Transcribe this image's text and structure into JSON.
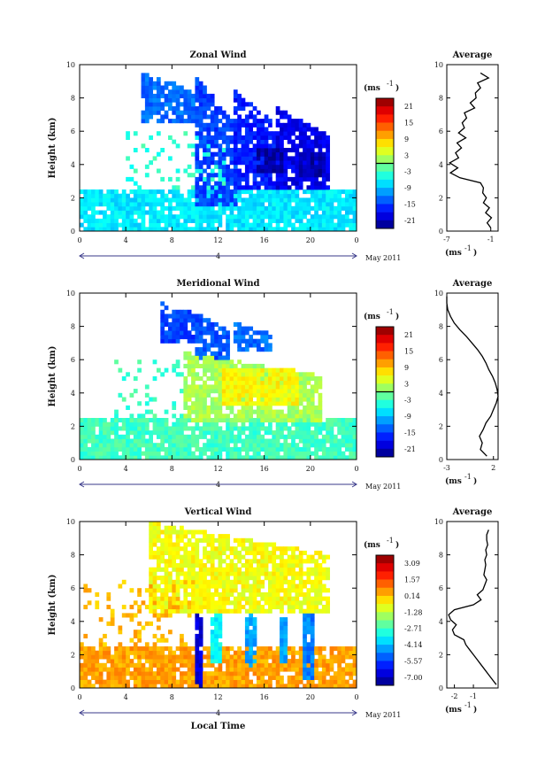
{
  "chart_data": [
    {
      "type": "heatmap",
      "title": "Zonal Wind",
      "ylabel": "Height (km)",
      "xlabel": "",
      "ylim": [
        0,
        10
      ],
      "xlim": [
        0,
        24
      ],
      "x_ticks": [
        "0",
        "4",
        "8",
        "12",
        "16",
        "20",
        "0"
      ],
      "y_ticks": [
        "0",
        "2",
        "4",
        "6",
        "8",
        "10"
      ],
      "date_marker": "4",
      "date_label": "May 2011",
      "colorbar": {
        "unit_text": "(ms",
        "unit_exp": "-1",
        "unit_close": ")",
        "range": [
          -24,
          24
        ],
        "ticks": [
          "21",
          "15",
          "9",
          "3",
          "-3",
          "-9",
          "-15",
          "-21"
        ]
      },
      "profile": {
        "title": "Average",
        "unit_text": "(ms",
        "unit_exp": "-1",
        "unit_close": ")",
        "xlim": [
          -7,
          0
        ],
        "x_ticks": [
          "-7",
          "-1"
        ],
        "y_ticks": [
          "0",
          "2",
          "4",
          "6",
          "8",
          "10"
        ],
        "height": [
          0.2,
          0.5,
          0.8,
          1.1,
          1.4,
          1.7,
          2.0,
          2.3,
          2.6,
          2.9,
          3.2,
          3.5,
          3.8,
          4.1,
          4.4,
          4.7,
          5.0,
          5.3,
          5.6,
          5.9,
          6.2,
          6.5,
          6.8,
          7.1,
          7.4,
          7.7,
          8.0,
          8.3,
          8.6,
          8.9,
          9.2,
          9.5
        ],
        "values": [
          -1.0,
          -1.5,
          -0.9,
          -1.7,
          -1.2,
          -2.0,
          -1.6,
          -2.1,
          -2.0,
          -2.4,
          -5.2,
          -6.5,
          -5.5,
          -6.6,
          -5.4,
          -5.8,
          -5.0,
          -5.6,
          -4.4,
          -5.4,
          -4.6,
          -4.9,
          -4.3,
          -4.6,
          -3.2,
          -3.8,
          -3.0,
          -3.1,
          -2.4,
          -2.8,
          -1.3,
          -2.4
        ]
      },
      "features": [
        {
          "kind": "band",
          "t0": 0,
          "t1": 24,
          "h0": 0,
          "h1": 2.4,
          "v": -7
        },
        {
          "kind": "plume",
          "t0": 5.5,
          "t1": 10,
          "h0": 6.5,
          "h1": 9.5,
          "v": -13
        },
        {
          "kind": "plume",
          "t0": 10,
          "t1": 13.5,
          "h0": 1.5,
          "h1": 9.3,
          "v": -15
        },
        {
          "kind": "plume",
          "t0": 13.5,
          "t1": 17,
          "h0": 2.5,
          "h1": 8.5,
          "v": -17
        },
        {
          "kind": "plume",
          "t0": 17,
          "t1": 21.5,
          "h0": 2.5,
          "h1": 7.5,
          "v": -19
        },
        {
          "kind": "blob",
          "t0": 15.5,
          "t1": 17.5,
          "h0": 3.5,
          "h1": 5.0,
          "v": -22
        },
        {
          "kind": "blob",
          "t0": 19,
          "t1": 21.2,
          "h0": 3.3,
          "h1": 4.8,
          "v": -22
        },
        {
          "kind": "sparse",
          "t0": 4,
          "t1": 13,
          "h0": 2.5,
          "h1": 6,
          "v": -4
        }
      ]
    },
    {
      "type": "heatmap",
      "title": "Meridional Wind",
      "ylabel": "Height (km)",
      "xlabel": "",
      "ylim": [
        0,
        10
      ],
      "xlim": [
        0,
        24
      ],
      "x_ticks": [
        "0",
        "4",
        "8",
        "12",
        "16",
        "20",
        "0"
      ],
      "y_ticks": [
        "0",
        "2",
        "4",
        "6",
        "8",
        "10"
      ],
      "date_marker": "4",
      "date_label": "May 2011",
      "colorbar": {
        "unit_text": "(ms",
        "unit_exp": "-1",
        "unit_close": ")",
        "range": [
          -24,
          24
        ],
        "ticks": [
          "21",
          "15",
          "9",
          "3",
          "-3",
          "-9",
          "-15",
          "-21"
        ]
      },
      "profile": {
        "title": "Average",
        "unit_text": "(ms",
        "unit_exp": "-1",
        "unit_close": ")",
        "xlim": [
          -3,
          2.5
        ],
        "x_ticks": [
          "-3",
          "2"
        ],
        "y_ticks": [
          "0",
          "2",
          "4",
          "6",
          "8",
          "10"
        ],
        "height": [
          0.2,
          0.6,
          1.0,
          1.4,
          1.8,
          2.2,
          2.6,
          3.0,
          3.4,
          3.8,
          4.2,
          4.6,
          5.0,
          5.4,
          5.8,
          6.2,
          6.6,
          7.0,
          7.4,
          7.8,
          8.2,
          8.6,
          9.0,
          9.4,
          9.8
        ],
        "values": [
          1.3,
          0.6,
          0.8,
          0.5,
          0.9,
          1.2,
          1.7,
          2.0,
          2.3,
          2.5,
          2.4,
          2.2,
          1.9,
          1.5,
          1.2,
          0.8,
          0.3,
          -0.3,
          -0.9,
          -1.6,
          -2.2,
          -2.6,
          -2.9,
          -3.0,
          -3.0
        ]
      },
      "features": [
        {
          "kind": "band",
          "t0": 0,
          "t1": 24,
          "h0": 0,
          "h1": 2.6,
          "v": -3
        },
        {
          "kind": "plume",
          "t0": 7,
          "t1": 10.5,
          "h0": 7,
          "h1": 9.5,
          "v": -15
        },
        {
          "kind": "plume",
          "t0": 10,
          "t1": 13,
          "h0": 6,
          "h1": 8.8,
          "v": -14
        },
        {
          "kind": "plume",
          "t0": 13.5,
          "t1": 16.5,
          "h0": 6.5,
          "h1": 8.2,
          "v": -13
        },
        {
          "kind": "plume",
          "t0": 9,
          "t1": 21,
          "h0": 2.3,
          "h1": 6.5,
          "v": 2
        },
        {
          "kind": "blob",
          "t0": 12.5,
          "t1": 19,
          "h0": 3.3,
          "h1": 5.5,
          "v": 6
        },
        {
          "kind": "sparse",
          "t0": 3,
          "t1": 9,
          "h0": 2.6,
          "h1": 6,
          "v": -3
        }
      ]
    },
    {
      "type": "heatmap",
      "title": "Vertical Wind",
      "ylabel": "Height (km)",
      "xlabel": "Local Time",
      "ylim": [
        0,
        10
      ],
      "xlim": [
        0,
        24
      ],
      "x_ticks": [
        "0",
        "4",
        "8",
        "12",
        "16",
        "20",
        "0"
      ],
      "y_ticks": [
        "0",
        "2",
        "4",
        "6",
        "8",
        "10"
      ],
      "date_marker": "4",
      "date_label": "May 2011",
      "colorbar": {
        "unit_text": "(ms",
        "unit_exp": "-1",
        "unit_close": ")",
        "range": [
          -8,
          4
        ],
        "ticks": [
          "3.09",
          "1.57",
          "0.14",
          "-1.28",
          "-2.71",
          "-4.14",
          "-5.57",
          "-7.00"
        ]
      },
      "profile": {
        "title": "Average",
        "unit_text": "(ms",
        "unit_exp": "-1",
        "unit_close": ")",
        "xlim": [
          -2.4,
          0.3
        ],
        "x_ticks": [
          "-2",
          "-1"
        ],
        "y_ticks": [
          "0",
          "2",
          "4",
          "6",
          "8",
          "10"
        ],
        "height": [
          0.2,
          0.5,
          0.8,
          1.1,
          1.4,
          1.7,
          2.0,
          2.3,
          2.6,
          2.9,
          3.2,
          3.5,
          3.8,
          4.1,
          4.4,
          4.7,
          5.0,
          5.3,
          5.6,
          5.9,
          6.2,
          6.5,
          6.8,
          7.1,
          7.4,
          7.7,
          8.0,
          8.3,
          8.6,
          8.9,
          9.2,
          9.5
        ],
        "values": [
          0.2,
          0.0,
          -0.2,
          -0.4,
          -0.6,
          -0.8,
          -1.0,
          -1.2,
          -1.4,
          -1.5,
          -2.0,
          -2.1,
          -1.9,
          -2.2,
          -2.3,
          -2.0,
          -1.0,
          -0.6,
          -0.8,
          -0.5,
          -0.4,
          -0.3,
          -0.45,
          -0.4,
          -0.35,
          -0.4,
          -0.3,
          -0.35,
          -0.25,
          -0.3,
          -0.3,
          -0.2
        ]
      },
      "features": [
        {
          "kind": "band",
          "t0": 0,
          "t1": 24,
          "h0": 0,
          "h1": 2.6,
          "v": 0.6
        },
        {
          "kind": "plume",
          "t0": 6,
          "t1": 21.5,
          "h0": 4.5,
          "h1": 10,
          "v": -0.6
        },
        {
          "kind": "column",
          "t0": 10.1,
          "t1": 10.8,
          "h0": 0.1,
          "h1": 4.6,
          "v": -7
        },
        {
          "kind": "column",
          "t0": 11.2,
          "t1": 12.2,
          "h0": 1.5,
          "h1": 4.6,
          "v": -3.5
        },
        {
          "kind": "column",
          "t0": 14.2,
          "t1": 15.2,
          "h0": 1.3,
          "h1": 4.6,
          "v": -4.5
        },
        {
          "kind": "column",
          "t0": 17.2,
          "t1": 18.0,
          "h0": 1.4,
          "h1": 4.6,
          "v": -4.5
        },
        {
          "kind": "column",
          "t0": 19.3,
          "t1": 20.4,
          "h0": 0.4,
          "h1": 4.6,
          "v": -5
        },
        {
          "kind": "sparse",
          "t0": 0,
          "t1": 10,
          "h0": 2.6,
          "h1": 6.5,
          "v": 0.3
        }
      ]
    }
  ]
}
